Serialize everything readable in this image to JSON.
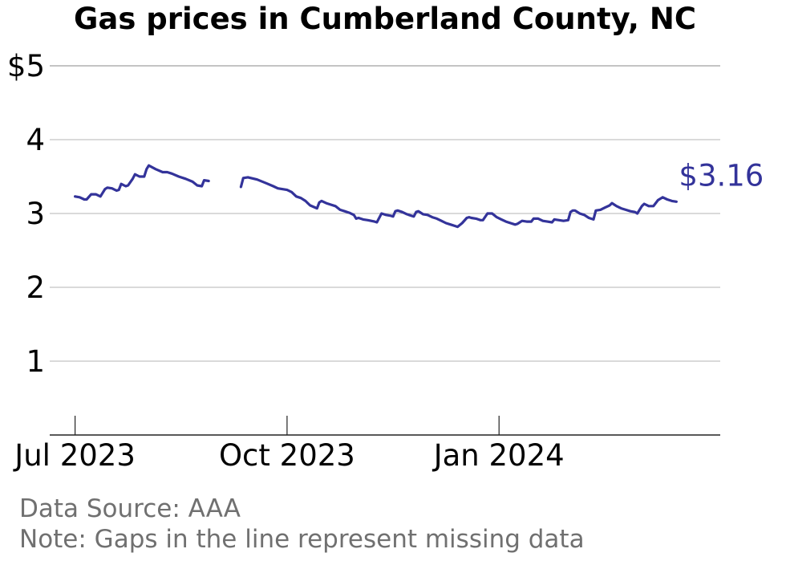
{
  "chart_data": {
    "type": "line",
    "title": "Gas prices in Cumberland County, NC",
    "xlabel": "",
    "ylabel": "",
    "x_ticks": [
      {
        "date": "2023-07-01",
        "label": "Jul 2023"
      },
      {
        "date": "2023-10-01",
        "label": "Oct 2023"
      },
      {
        "date": "2024-01-01",
        "label": "Jan 2024"
      }
    ],
    "y_ticks": [
      {
        "value": 1,
        "label": "1"
      },
      {
        "value": 2,
        "label": "2"
      },
      {
        "value": 3,
        "label": "3"
      },
      {
        "value": 4,
        "label": "4"
      },
      {
        "value": 5,
        "label": "$5"
      }
    ],
    "ylim": [
      0,
      5
    ],
    "xlim": [
      "2023-06-20",
      "2024-04-06"
    ],
    "grid": true,
    "line_color": "#33339a",
    "end_label": "$3.16",
    "series": [
      {
        "segments": [
          [
            [
              "2023-07-01",
              3.23
            ],
            [
              "2023-07-03",
              3.22
            ],
            [
              "2023-07-05",
              3.19
            ],
            [
              "2023-07-06",
              3.19
            ],
            [
              "2023-07-08",
              3.26
            ],
            [
              "2023-07-10",
              3.26
            ],
            [
              "2023-07-12",
              3.23
            ],
            [
              "2023-07-14",
              3.33
            ],
            [
              "2023-07-15",
              3.35
            ],
            [
              "2023-07-17",
              3.34
            ],
            [
              "2023-07-19",
              3.31
            ],
            [
              "2023-07-20",
              3.32
            ],
            [
              "2023-07-21",
              3.4
            ],
            [
              "2023-07-23",
              3.37
            ],
            [
              "2023-07-24",
              3.38
            ],
            [
              "2023-07-26",
              3.47
            ],
            [
              "2023-07-27",
              3.53
            ],
            [
              "2023-07-29",
              3.5
            ],
            [
              "2023-07-31",
              3.5
            ],
            [
              "2023-08-01",
              3.6
            ],
            [
              "2023-08-02",
              3.65
            ],
            [
              "2023-08-05",
              3.6
            ],
            [
              "2023-08-08",
              3.56
            ],
            [
              "2023-08-10",
              3.56
            ],
            [
              "2023-08-12",
              3.54
            ],
            [
              "2023-08-15",
              3.5
            ],
            [
              "2023-08-18",
              3.47
            ],
            [
              "2023-08-21",
              3.43
            ],
            [
              "2023-08-23",
              3.38
            ],
            [
              "2023-08-25",
              3.37
            ],
            [
              "2023-08-26",
              3.45
            ],
            [
              "2023-08-28",
              3.44
            ]
          ],
          [
            [
              "2023-09-11",
              3.36
            ],
            [
              "2023-09-12",
              3.48
            ],
            [
              "2023-09-14",
              3.49
            ],
            [
              "2023-09-18",
              3.46
            ],
            [
              "2023-09-22",
              3.41
            ],
            [
              "2023-09-25",
              3.37
            ],
            [
              "2023-09-27",
              3.34
            ],
            [
              "2023-10-01",
              3.32
            ],
            [
              "2023-10-03",
              3.29
            ],
            [
              "2023-10-05",
              3.23
            ],
            [
              "2023-10-07",
              3.21
            ],
            [
              "2023-10-09",
              3.17
            ],
            [
              "2023-10-11",
              3.11
            ],
            [
              "2023-10-14",
              3.07
            ],
            [
              "2023-10-15",
              3.15
            ],
            [
              "2023-10-16",
              3.17
            ],
            [
              "2023-10-18",
              3.14
            ],
            [
              "2023-10-20",
              3.12
            ],
            [
              "2023-10-22",
              3.1
            ],
            [
              "2023-10-24",
              3.05
            ],
            [
              "2023-10-26",
              3.03
            ],
            [
              "2023-10-28",
              3.01
            ],
            [
              "2023-10-30",
              2.98
            ],
            [
              "2023-10-31",
              2.93
            ],
            [
              "2023-11-01",
              2.94
            ],
            [
              "2023-11-03",
              2.92
            ],
            [
              "2023-11-05",
              2.91
            ],
            [
              "2023-11-08",
              2.89
            ],
            [
              "2023-11-09",
              2.88
            ],
            [
              "2023-11-11",
              3.0
            ],
            [
              "2023-11-13",
              2.98
            ],
            [
              "2023-11-15",
              2.97
            ],
            [
              "2023-11-16",
              2.96
            ],
            [
              "2023-11-17",
              3.03
            ],
            [
              "2023-11-18",
              3.04
            ],
            [
              "2023-11-20",
              3.02
            ],
            [
              "2023-11-22",
              2.99
            ],
            [
              "2023-11-24",
              2.97
            ],
            [
              "2023-11-25",
              2.96
            ],
            [
              "2023-11-26",
              3.02
            ],
            [
              "2023-11-27",
              3.03
            ],
            [
              "2023-11-29",
              2.99
            ],
            [
              "2023-12-01",
              2.98
            ],
            [
              "2023-12-03",
              2.95
            ],
            [
              "2023-12-05",
              2.93
            ],
            [
              "2023-12-07",
              2.9
            ],
            [
              "2023-12-09",
              2.87
            ],
            [
              "2023-12-11",
              2.85
            ],
            [
              "2023-12-13",
              2.83
            ],
            [
              "2023-12-14",
              2.82
            ],
            [
              "2023-12-16",
              2.87
            ],
            [
              "2023-12-18",
              2.94
            ],
            [
              "2023-12-19",
              2.95
            ],
            [
              "2023-12-20",
              2.94
            ],
            [
              "2023-12-22",
              2.93
            ],
            [
              "2023-12-24",
              2.91
            ],
            [
              "2023-12-25",
              2.91
            ],
            [
              "2023-12-27",
              3.0
            ],
            [
              "2023-12-29",
              3.0
            ],
            [
              "2023-12-31",
              2.95
            ],
            [
              "2024-01-02",
              2.92
            ],
            [
              "2024-01-04",
              2.89
            ],
            [
              "2024-01-06",
              2.87
            ],
            [
              "2024-01-08",
              2.85
            ],
            [
              "2024-01-09",
              2.86
            ],
            [
              "2024-01-11",
              2.9
            ],
            [
              "2024-01-13",
              2.89
            ],
            [
              "2024-01-15",
              2.89
            ],
            [
              "2024-01-16",
              2.93
            ],
            [
              "2024-01-18",
              2.93
            ],
            [
              "2024-01-20",
              2.9
            ],
            [
              "2024-01-22",
              2.89
            ],
            [
              "2024-01-24",
              2.88
            ],
            [
              "2024-01-25",
              2.92
            ],
            [
              "2024-01-27",
              2.91
            ],
            [
              "2024-01-29",
              2.9
            ],
            [
              "2024-01-31",
              2.91
            ],
            [
              "2024-02-01",
              3.02
            ],
            [
              "2024-02-02",
              3.04
            ],
            [
              "2024-02-03",
              3.04
            ],
            [
              "2024-02-05",
              3.0
            ],
            [
              "2024-02-07",
              2.98
            ],
            [
              "2024-02-09",
              2.94
            ],
            [
              "2024-02-11",
              2.92
            ],
            [
              "2024-02-12",
              3.04
            ],
            [
              "2024-02-14",
              3.05
            ],
            [
              "2024-02-16",
              3.08
            ],
            [
              "2024-02-18",
              3.11
            ],
            [
              "2024-02-19",
              3.14
            ],
            [
              "2024-02-21",
              3.1
            ],
            [
              "2024-02-23",
              3.07
            ],
            [
              "2024-02-25",
              3.05
            ],
            [
              "2024-02-27",
              3.03
            ],
            [
              "2024-02-29",
              3.02
            ],
            [
              "2024-03-01",
              3.0
            ],
            [
              "2024-03-03",
              3.1
            ],
            [
              "2024-03-04",
              3.13
            ],
            [
              "2024-03-06",
              3.1
            ],
            [
              "2024-03-08",
              3.1
            ],
            [
              "2024-03-10",
              3.18
            ],
            [
              "2024-03-12",
              3.22
            ],
            [
              "2024-03-14",
              3.19
            ],
            [
              "2024-03-16",
              3.17
            ],
            [
              "2024-03-18",
              3.16
            ]
          ]
        ]
      }
    ]
  },
  "footer": {
    "source": "Data Source: AAA",
    "note": "Note: Gaps in the line represent missing data"
  }
}
